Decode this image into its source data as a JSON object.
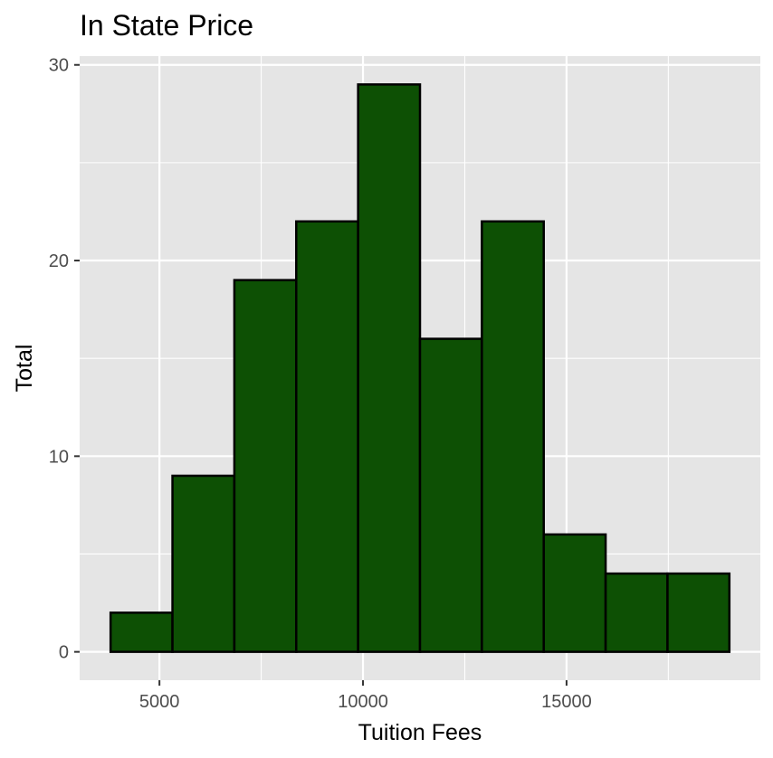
{
  "chart_data": {
    "type": "bar",
    "title": "In State Price",
    "xlabel": "Tuition Fees",
    "ylabel": "Total",
    "bin_edges": [
      3800,
      5320,
      6840,
      8360,
      9880,
      11400,
      12920,
      14440,
      15960,
      17480,
      19000
    ],
    "values": [
      2,
      9,
      19,
      22,
      29,
      16,
      22,
      6,
      4,
      4
    ],
    "x_ticks": [
      5000,
      10000,
      15000
    ],
    "x_tick_labels": [
      "5000",
      "10000",
      "15000"
    ],
    "y_ticks": [
      0,
      10,
      20,
      30
    ],
    "y_tick_labels": [
      "0",
      "10",
      "20",
      "30"
    ],
    "xlim": [
      3040,
      19760
    ],
    "ylim": [
      -1.45,
      30.45
    ],
    "grid": true,
    "colors": {
      "bar_fill": "#0d5004",
      "bar_stroke": "#000000",
      "panel_background": "#e5e5e5",
      "grid": "#ffffff"
    }
  }
}
